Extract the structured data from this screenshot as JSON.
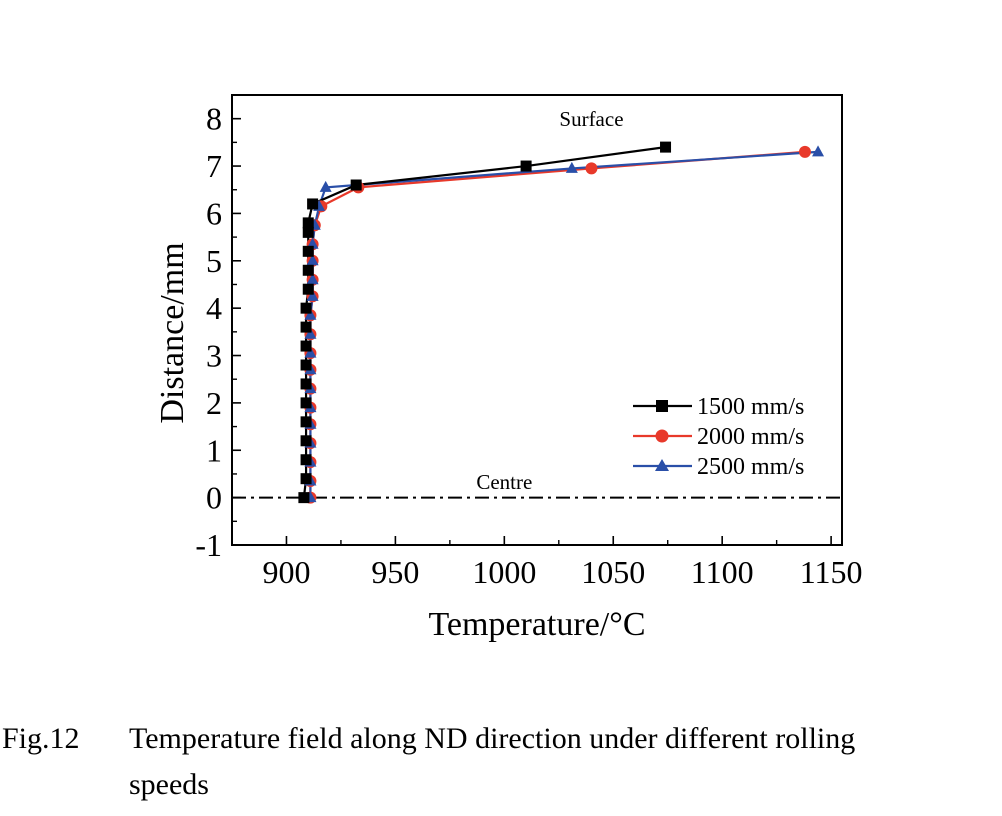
{
  "chart_data": {
    "type": "line",
    "title": "",
    "xlabel": "Temperature/°C",
    "ylabel": "Distance/mm",
    "xlim": [
      875,
      1155
    ],
    "ylim": [
      -1,
      8.5
    ],
    "xticks": [
      900,
      950,
      1000,
      1050,
      1100,
      1150
    ],
    "yticks": [
      -1,
      0,
      1,
      2,
      3,
      4,
      5,
      6,
      7,
      8
    ],
    "legend_position": "bottom-right",
    "annotations": [
      {
        "text": "Surface",
        "x": 1040,
        "y": 7.85
      },
      {
        "text": "Centre",
        "x": 1000,
        "y": 0.18
      }
    ],
    "reference_line": {
      "y": 0,
      "style": "dash-dot"
    },
    "series": [
      {
        "name": "1500 mm/s",
        "color": "#000000",
        "marker": "square",
        "points": [
          [
            908,
            0
          ],
          [
            909,
            0.4
          ],
          [
            909,
            0.8
          ],
          [
            909,
            1.2
          ],
          [
            909,
            1.6
          ],
          [
            909,
            2.0
          ],
          [
            909,
            2.4
          ],
          [
            909,
            2.8
          ],
          [
            909,
            3.2
          ],
          [
            909,
            3.6
          ],
          [
            909,
            4.0
          ],
          [
            910,
            4.4
          ],
          [
            910,
            4.8
          ],
          [
            910,
            5.2
          ],
          [
            910,
            5.6
          ],
          [
            910,
            5.8
          ],
          [
            912,
            6.2
          ],
          [
            932,
            6.6
          ],
          [
            1010,
            7.0
          ],
          [
            1074,
            7.4
          ]
        ]
      },
      {
        "name": "2000 mm/s",
        "color": "#e8392a",
        "marker": "circle",
        "points": [
          [
            911,
            0
          ],
          [
            911,
            0.35
          ],
          [
            911,
            0.75
          ],
          [
            911,
            1.15
          ],
          [
            911,
            1.55
          ],
          [
            911,
            1.9
          ],
          [
            911,
            2.3
          ],
          [
            911,
            2.7
          ],
          [
            911,
            3.05
          ],
          [
            911,
            3.45
          ],
          [
            911,
            3.85
          ],
          [
            912,
            4.25
          ],
          [
            912,
            4.6
          ],
          [
            912,
            5.0
          ],
          [
            912,
            5.35
          ],
          [
            913,
            5.75
          ],
          [
            916,
            6.15
          ],
          [
            933,
            6.55
          ],
          [
            1040,
            6.95
          ],
          [
            1138,
            7.3
          ]
        ]
      },
      {
        "name": "2500 mm/s",
        "color": "#2a4fa8",
        "marker": "triangle",
        "points": [
          [
            911,
            0
          ],
          [
            911,
            0.35
          ],
          [
            911,
            0.75
          ],
          [
            911,
            1.15
          ],
          [
            911,
            1.55
          ],
          [
            911,
            1.9
          ],
          [
            911,
            2.3
          ],
          [
            911,
            2.7
          ],
          [
            911,
            3.05
          ],
          [
            911,
            3.45
          ],
          [
            911,
            3.85
          ],
          [
            912,
            4.25
          ],
          [
            912,
            4.6
          ],
          [
            912,
            5.0
          ],
          [
            912,
            5.35
          ],
          [
            913,
            5.75
          ],
          [
            915,
            6.15
          ],
          [
            918,
            6.55
          ],
          [
            1031,
            6.95
          ],
          [
            1144,
            7.3
          ]
        ]
      }
    ]
  },
  "caption": {
    "number": "Fig.12",
    "line1": "Temperature field along ND direction under different rolling",
    "line2": "speeds"
  }
}
